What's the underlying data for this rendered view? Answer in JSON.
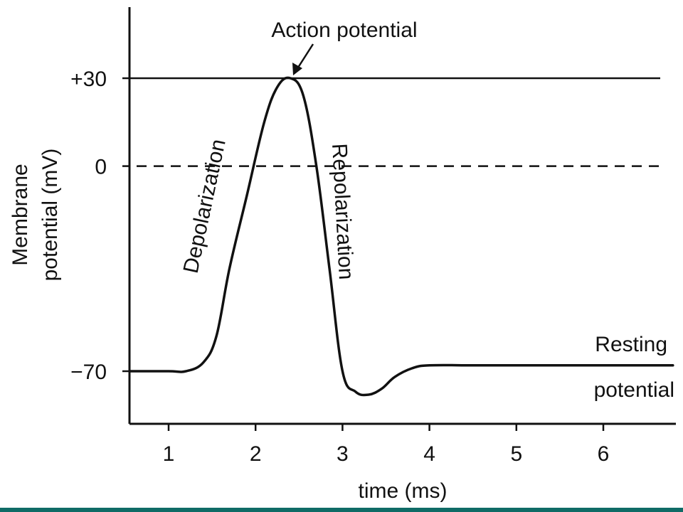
{
  "chart_data": {
    "type": "line",
    "xlabel": "time (ms)",
    "ylabel_line1": "Membrane",
    "ylabel_line2": "potential (mV)",
    "x_ticks": [
      "1",
      "2",
      "3",
      "4",
      "5",
      "6"
    ],
    "y_ticks": [
      "+30",
      "0",
      "−70"
    ],
    "xlim": [
      0.55,
      7.3
    ],
    "ylim": [
      -88,
      85
    ],
    "series": [
      {
        "x": [
          0.55,
          1.0,
          1.2,
          1.4,
          1.55,
          1.7,
          1.9,
          2.1,
          2.25,
          2.4,
          2.55,
          2.7,
          2.85,
          3.0,
          3.15,
          3.3,
          3.45,
          3.6,
          3.8,
          4.0,
          4.5,
          5.0,
          6.0,
          6.8
        ],
        "values": [
          -70,
          -70,
          -70,
          -67,
          -58,
          -35,
          -10,
          15,
          27,
          30,
          24,
          0,
          -35,
          -70,
          -77,
          -78,
          -76,
          -72,
          -69,
          -68,
          -68,
          -68,
          -68,
          -68
        ]
      }
    ],
    "reference_lines": [
      {
        "y": 30,
        "style": "solid"
      },
      {
        "y": 0,
        "style": "dashed"
      }
    ],
    "annotations": {
      "peak": "Action potential",
      "rising": "Depolarization",
      "falling": "Repolarization",
      "rest_line1": "Resting",
      "rest_line2": "potential"
    }
  },
  "colors": {
    "ink": "#111111",
    "band": "#0f6b66",
    "background": "#ffffff"
  }
}
